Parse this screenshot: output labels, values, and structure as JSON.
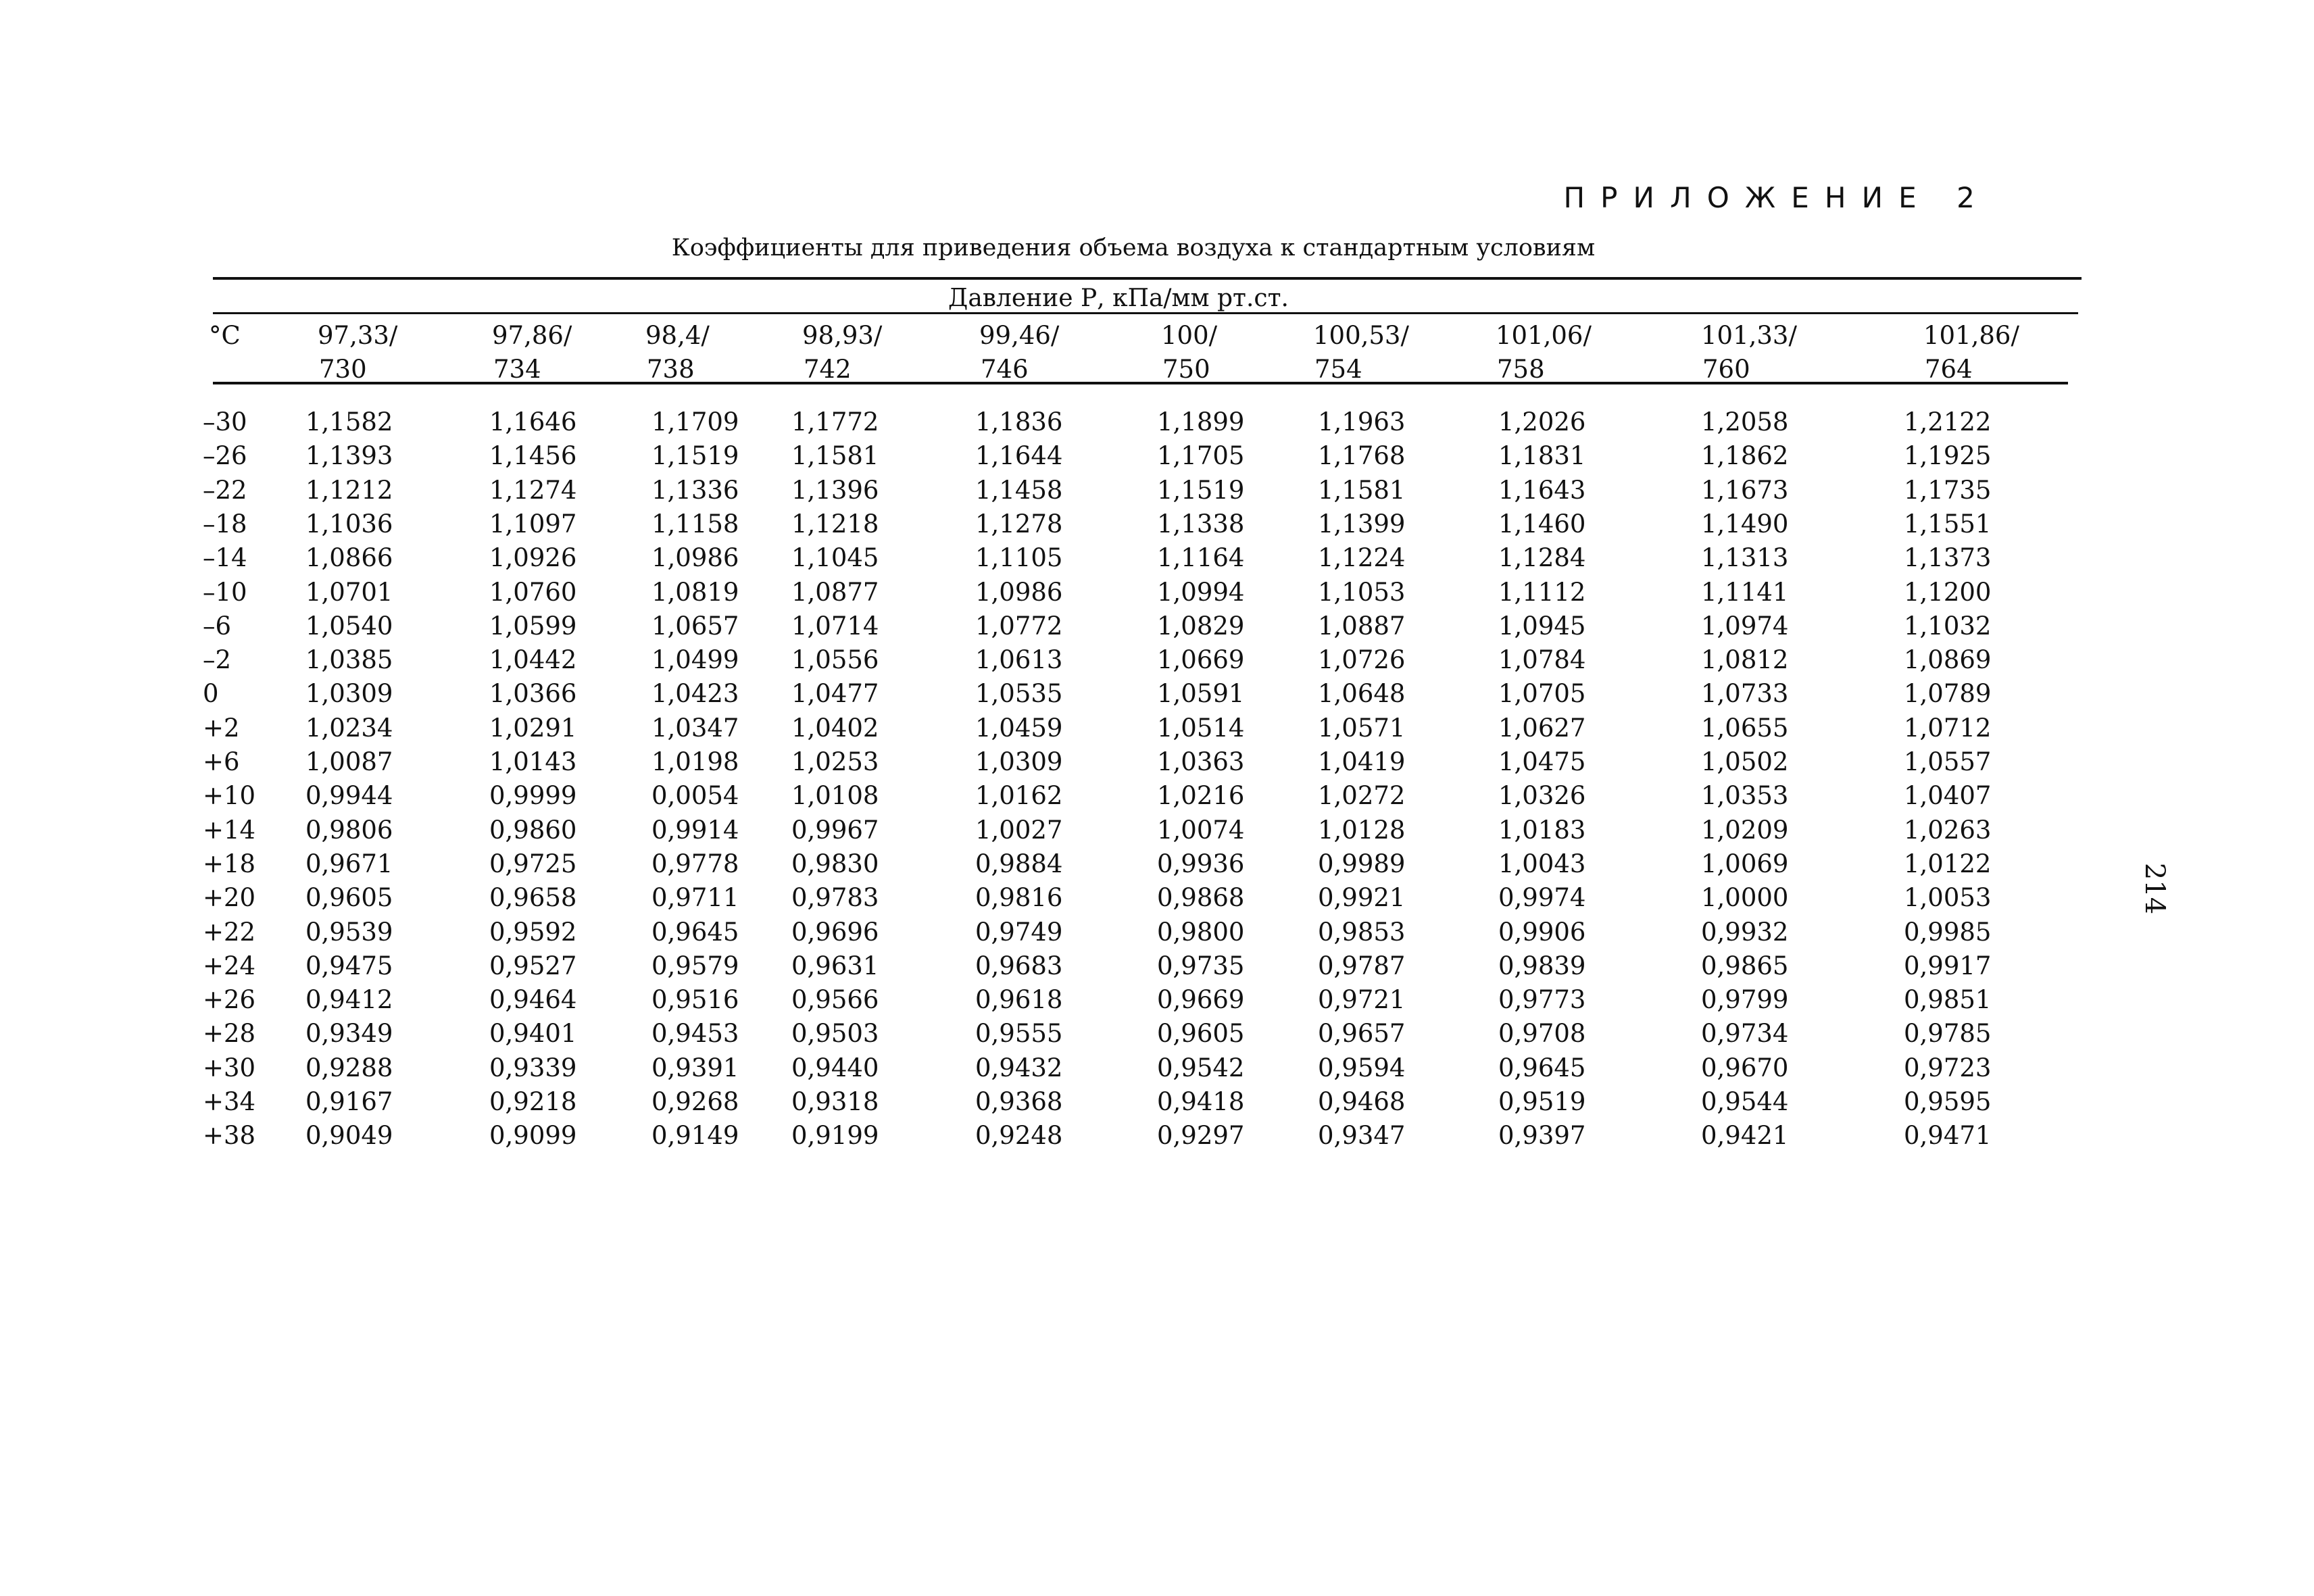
{
  "header": {
    "appendix": "ПРИЛОЖЕНИЕ 2",
    "caption": "Коэффициенты для приведения объема воздуха к стандартным условиям"
  },
  "table": {
    "group_header": "Давление Р, кПа/мм рт.ст.",
    "unit_header": "°С",
    "columns": [
      {
        "top": "97,33/",
        "bottom": "730"
      },
      {
        "top": "97,86/",
        "bottom": "734"
      },
      {
        "top": "98,4/",
        "bottom": "738"
      },
      {
        "top": "98,93/",
        "bottom": "742"
      },
      {
        "top": "99,46/",
        "bottom": "746"
      },
      {
        "top": "100/",
        "bottom": "750"
      },
      {
        "top": "100,53/",
        "bottom": "754"
      },
      {
        "top": "101,06/",
        "bottom": "758"
      },
      {
        "top": "101,33/",
        "bottom": "760"
      },
      {
        "top": "101,86/",
        "bottom": "764"
      }
    ],
    "rows": [
      [
        "–30",
        "1,1582",
        "1,1646",
        "1,1709",
        "1,1772",
        "1,1836",
        "1,1899",
        "1,1963",
        "1,2026",
        "1,2058",
        "1,2122"
      ],
      [
        "–26",
        "1,1393",
        "1,1456",
        "1,1519",
        "1,1581",
        "1,1644",
        "1,1705",
        "1,1768",
        "1,1831",
        "1,1862",
        "1,1925"
      ],
      [
        "–22",
        "1,1212",
        "1,1274",
        "1,1336",
        "1,1396",
        "1,1458",
        "1,1519",
        "1,1581",
        "1,1643",
        "1,1673",
        "1,1735"
      ],
      [
        "–18",
        "1,1036",
        "1,1097",
        "1,1158",
        "1,1218",
        "1,1278",
        "1,1338",
        "1,1399",
        "1,1460",
        "1,1490",
        "1,1551"
      ],
      [
        "–14",
        "1,0866",
        "1,0926",
        "1,0986",
        "1,1045",
        "1,1105",
        "1,1164",
        "1,1224",
        "1,1284",
        "1,1313",
        "1,1373"
      ],
      [
        "–10",
        "1,0701",
        "1,0760",
        "1,0819",
        "1,0877",
        "1,0986",
        "1,0994",
        "1,1053",
        "1,1112",
        "1,1141",
        "1,1200"
      ],
      [
        "–6",
        "1,0540",
        "1,0599",
        "1,0657",
        "1,0714",
        "1,0772",
        "1,0829",
        "1,0887",
        "1,0945",
        "1,0974",
        "1,1032"
      ],
      [
        "–2",
        "1,0385",
        "1,0442",
        "1,0499",
        "1,0556",
        "1,0613",
        "1,0669",
        "1,0726",
        "1,0784",
        "1,0812",
        "1,0869"
      ],
      [
        "0",
        "1,0309",
        "1,0366",
        "1,0423",
        "1,0477",
        "1,0535",
        "1,0591",
        "1,0648",
        "1,0705",
        "1,0733",
        "1,0789"
      ],
      [
        "+2",
        "1,0234",
        "1,0291",
        "1,0347",
        "1,0402",
        "1,0459",
        "1,0514",
        "1,0571",
        "1,0627",
        "1,0655",
        "1,0712"
      ],
      [
        "+6",
        "1,0087",
        "1,0143",
        "1,0198",
        "1,0253",
        "1,0309",
        "1,0363",
        "1,0419",
        "1,0475",
        "1,0502",
        "1,0557"
      ],
      [
        "+10",
        "0,9944",
        "0,9999",
        "0,0054",
        "1,0108",
        "1,0162",
        "1,0216",
        "1,0272",
        "1,0326",
        "1,0353",
        "1,0407"
      ],
      [
        "+14",
        "0,9806",
        "0,9860",
        "0,9914",
        "0,9967",
        "1,0027",
        "1,0074",
        "1,0128",
        "1,0183",
        "1,0209",
        "1,0263"
      ],
      [
        "+18",
        "0,9671",
        "0,9725",
        "0,9778",
        "0,9830",
        "0,9884",
        "0,9936",
        "0,9989",
        "1,0043",
        "1,0069",
        "1,0122"
      ],
      [
        "+20",
        "0,9605",
        "0,9658",
        "0,9711",
        "0,9783",
        "0,9816",
        "0,9868",
        "0,9921",
        "0,9974",
        "1,0000",
        "1,0053"
      ],
      [
        "+22",
        "0,9539",
        "0,9592",
        "0,9645",
        "0,9696",
        "0,9749",
        "0,9800",
        "0,9853",
        "0,9906",
        "0,9932",
        "0,9985"
      ],
      [
        "+24",
        "0,9475",
        "0,9527",
        "0,9579",
        "0,9631",
        "0,9683",
        "0,9735",
        "0,9787",
        "0,9839",
        "0,9865",
        "0,9917"
      ],
      [
        "+26",
        "0,9412",
        "0,9464",
        "0,9516",
        "0,9566",
        "0,9618",
        "0,9669",
        "0,9721",
        "0,9773",
        "0,9799",
        "0,9851"
      ],
      [
        "+28",
        "0,9349",
        "0,9401",
        "0,9453",
        "0,9503",
        "0,9555",
        "0,9605",
        "0,9657",
        "0,9708",
        "0,9734",
        "0,9785"
      ],
      [
        "+30",
        "0,9288",
        "0,9339",
        "0,9391",
        "0,9440",
        "0,9432",
        "0,9542",
        "0,9594",
        "0,9645",
        "0,9670",
        "0,9723"
      ],
      [
        "+34",
        "0,9167",
        "0,9218",
        "0,9268",
        "0,9318",
        "0,9368",
        "0,9418",
        "0,9468",
        "0,9519",
        "0,9544",
        "0,9595"
      ],
      [
        "+38",
        "0,9049",
        "0,9099",
        "0,9149",
        "0,9199",
        "0,9248",
        "0,9297",
        "0,9347",
        "0,9397",
        "0,9421",
        "0,9471"
      ]
    ]
  },
  "page_number": "214"
}
